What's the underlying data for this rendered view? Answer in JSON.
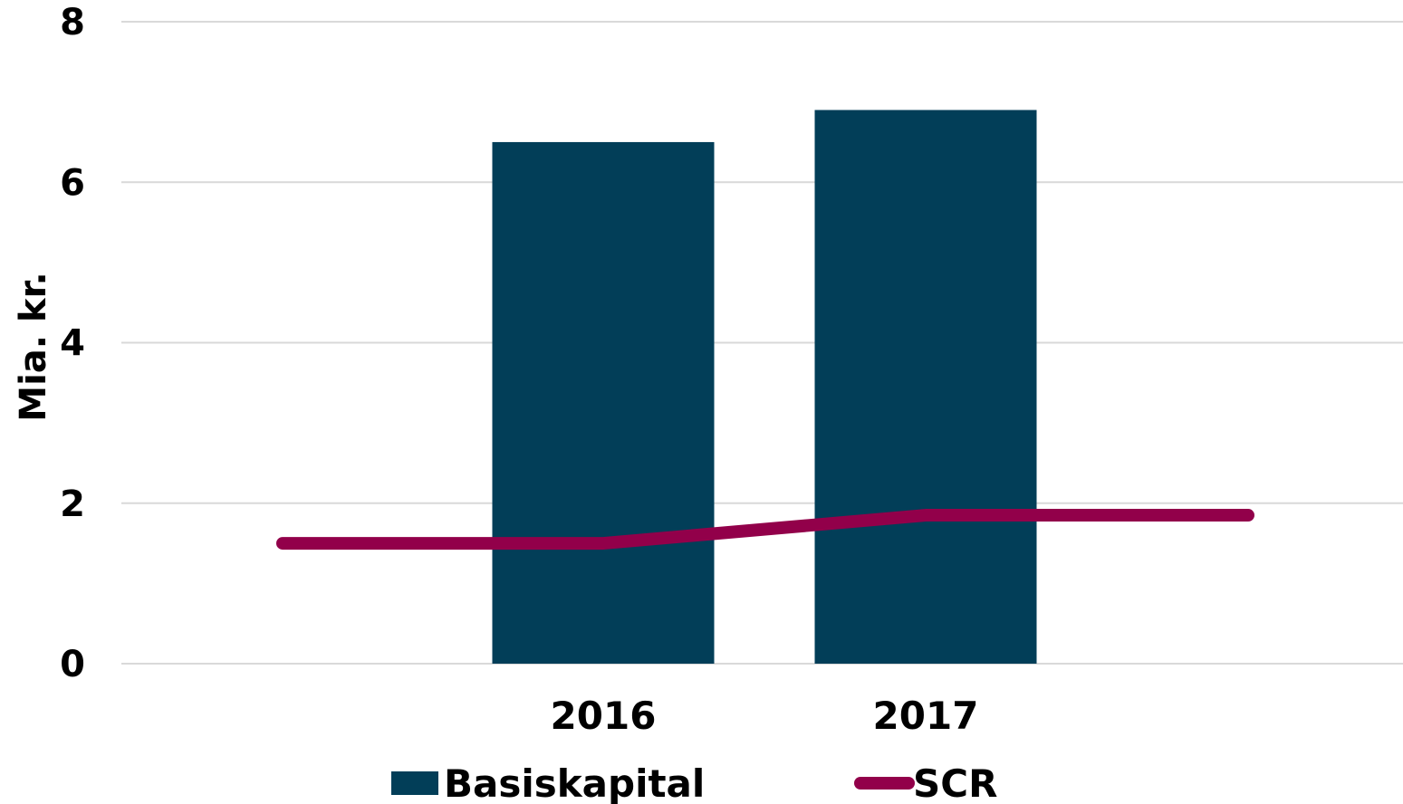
{
  "chart_data": {
    "type": "bar",
    "categories": [
      "2016",
      "2017"
    ],
    "series": [
      {
        "name": "Basiskapital",
        "type": "bar",
        "values": [
          6.5,
          6.9
        ],
        "color": "#023e58"
      },
      {
        "name": "SCR",
        "type": "line",
        "values": [
          1.5,
          1.85
        ],
        "color": "#92004a",
        "extends_to_plot_edges": true
      }
    ],
    "ylabel": "Mia. kr.",
    "xlabel": "",
    "ylim": [
      0,
      8
    ],
    "yticks": [
      0,
      2,
      4,
      6,
      8
    ],
    "ytick_labels": [
      "0",
      "2",
      "4",
      "6",
      "8"
    ],
    "grid": true,
    "legend": "bottom"
  }
}
